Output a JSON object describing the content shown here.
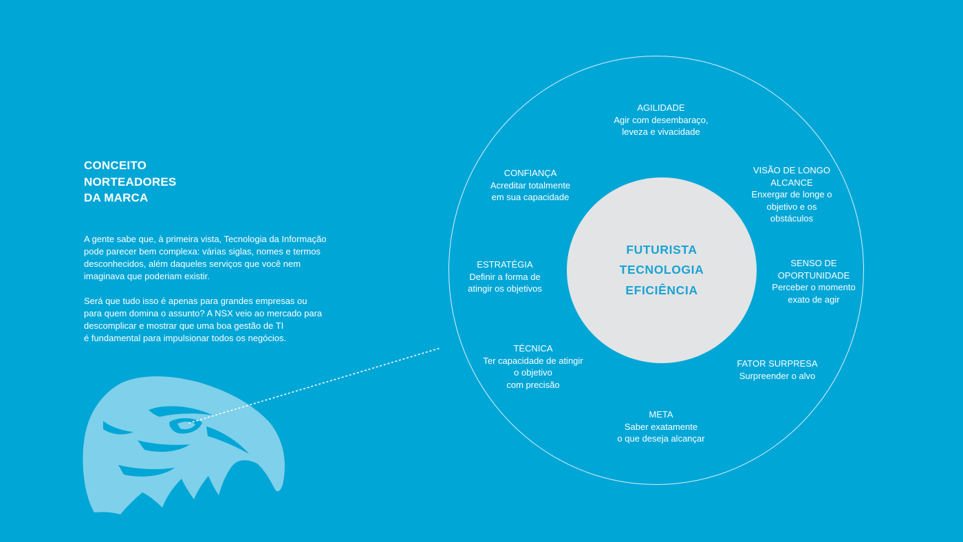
{
  "colors": {
    "background": "#00a6d6",
    "core_fill": "#e3e4e6",
    "core_text": "#1aa3d3",
    "eagle": "#7fd0ea",
    "text": "#ffffff"
  },
  "heading": {
    "lines": [
      "CONCEITO",
      "NORTEADORES",
      "DA MARCA"
    ]
  },
  "intro": {
    "paragraph_1": [
      "A gente sabe que, à primeira vista, Tecnologia da Informação",
      "pode parecer bem complexa: várias siglas, nomes e termos",
      "desconhecidos, além daqueles serviços que você nem",
      "imaginava que poderiam existir."
    ],
    "paragraph_2": [
      "Será que tudo isso é apenas para grandes empresas ou",
      "para quem domina o assunto? A NSX veio ao mercado para",
      "descomplicar e mostrar que uma boa gestão de TI",
      "é fundamental para impulsionar todos os negócios."
    ]
  },
  "core": {
    "words": [
      "FUTURISTA",
      "TECNOLOGIA",
      "EFICIÊNCIA"
    ]
  },
  "concepts": {
    "agilidade": {
      "title": "AGILIDADE",
      "lines": [
        "Agir com desembaraço,",
        "leveza e vivacidade"
      ]
    },
    "confianca": {
      "title": "CONFIANÇA",
      "lines": [
        "Acreditar totalmente",
        "em sua capacidade"
      ]
    },
    "visao": {
      "title": [
        "VISÃO DE LONGO",
        "ALCANCE"
      ],
      "lines": [
        "Enxergar de longe o",
        "objetivo e os",
        "obstáculos"
      ]
    },
    "estrategia": {
      "title": "ESTRATÉGIA",
      "lines": [
        "Definir a forma de",
        "atingir os objetivos"
      ]
    },
    "senso": {
      "title": [
        "SENSO DE",
        "OPORTUNIDADE"
      ],
      "lines": [
        "Perceber o momento",
        "exato de agir"
      ]
    },
    "tecnica": {
      "title": "TÉCNICA",
      "lines": [
        "Ter capacidade de atingir",
        "o objetivo",
        "com precisão"
      ]
    },
    "fator": {
      "title": "FATOR SURPRESA",
      "lines": [
        "Surpreender o alvo"
      ]
    },
    "meta": {
      "title": "META",
      "lines": [
        "Saber exatamente",
        "o que deseja alcançar"
      ]
    }
  }
}
